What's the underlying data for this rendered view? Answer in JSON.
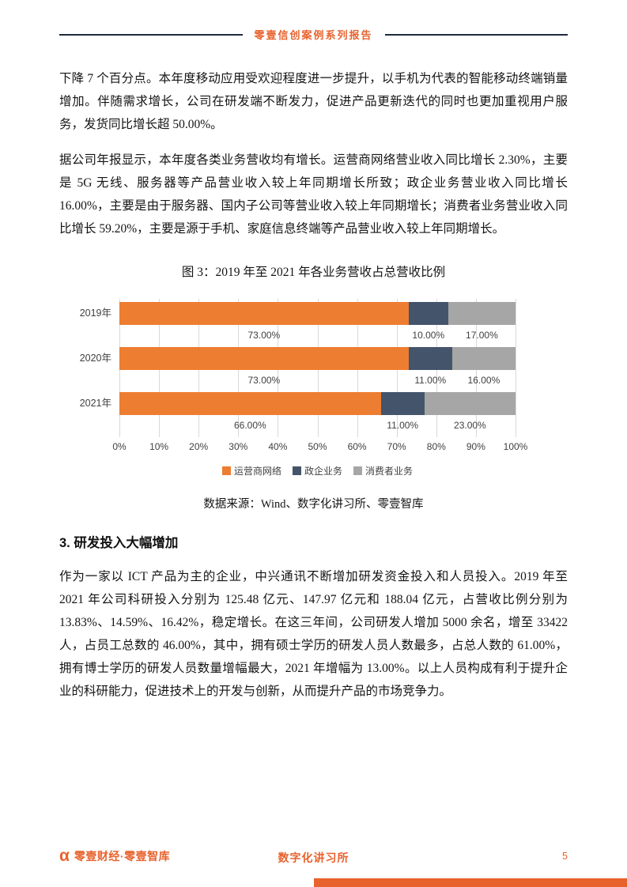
{
  "colors": {
    "accent": "#E8622D",
    "header_line": "#1F2A3C",
    "text": "#141414",
    "grid_line": "#D9D9D9",
    "chart_label": "#404040"
  },
  "header": {
    "title": "零壹信创案例系列报告"
  },
  "paragraphs": {
    "p1": "下降 7 个百分点。本年度移动应用受欢迎程度进一步提升，以手机为代表的智能移动终端销量增加。伴随需求增长，公司在研发端不断发力，促进产品更新迭代的同时也更加重视用户服务，发货同比增长超 50.00%。",
    "p2": "据公司年报显示，本年度各类业务营收均有增长。运营商网络营业收入同比增长 2.30%，主要是 5G 无线、服务器等产品营业收入较上年同期增长所致；政企业务营业收入同比增长 16.00%，主要是由于服务器、国内子公司等营业收入较上年同期增长；消费者业务营业收入同比增长 59.20%，主要是源于手机、家庭信息终端等产品营业收入较上年同期增长。",
    "p3": "作为一家以 ICT 产品为主的企业，中兴通讯不断增加研发资金投入和人员投入。2019 年至 2021 年公司科研投入分别为 125.48 亿元、147.97 亿元和 188.04 亿元，占营收比例分别为 13.83%、14.59%、16.42%，稳定增长。在这三年间，公司研发人增加 5000 余名，增至 33422 人，占员工总数的 46.00%，其中，拥有硕士学历的研发人员人数最多，占总人数的 61.00%，拥有博士学历的研发人员数量增幅最大，2021 年增幅为 13.00%。以上人员构成有利于提升企业的科研能力，促进技术上的开发与创新，从而提升产品的市场竞争力。"
  },
  "figure": {
    "caption": "图 3：2019 年至 2021 年各业务营收占总营收比例",
    "source": "数据来源：Wind、数字化讲习所、零壹智库"
  },
  "chart_data": {
    "type": "bar",
    "orientation": "horizontal",
    "stacked": true,
    "title": "图 3：2019 年至 2021 年各业务营收占总营收比例",
    "categories": [
      "2019年",
      "2020年",
      "2021年"
    ],
    "series": [
      {
        "name": "运营商网络",
        "color": "#ED7D31",
        "values": [
          73.0,
          73.0,
          66.0
        ]
      },
      {
        "name": "政企业务",
        "color": "#44546A",
        "values": [
          10.0,
          11.0,
          11.0
        ]
      },
      {
        "name": "消费者业务",
        "color": "#A6A6A6",
        "values": [
          17.0,
          16.0,
          23.0
        ]
      }
    ],
    "value_labels": [
      [
        "73.00%",
        "10.00%",
        "17.00%"
      ],
      [
        "73.00%",
        "11.00%",
        "16.00%"
      ],
      [
        "66.00%",
        "11.00%",
        "23.00%"
      ]
    ],
    "x_ticks": [
      "0%",
      "10%",
      "20%",
      "30%",
      "40%",
      "50%",
      "60%",
      "70%",
      "80%",
      "90%",
      "100%"
    ],
    "xlim": [
      0,
      100
    ],
    "grid": true,
    "legend_position": "bottom"
  },
  "section": {
    "heading": "3. 研发投入大幅增加"
  },
  "footer": {
    "logo_glyph": "α",
    "brand": "零壹财经·零壹智库",
    "center": "数字化讲习所",
    "page": "5"
  }
}
